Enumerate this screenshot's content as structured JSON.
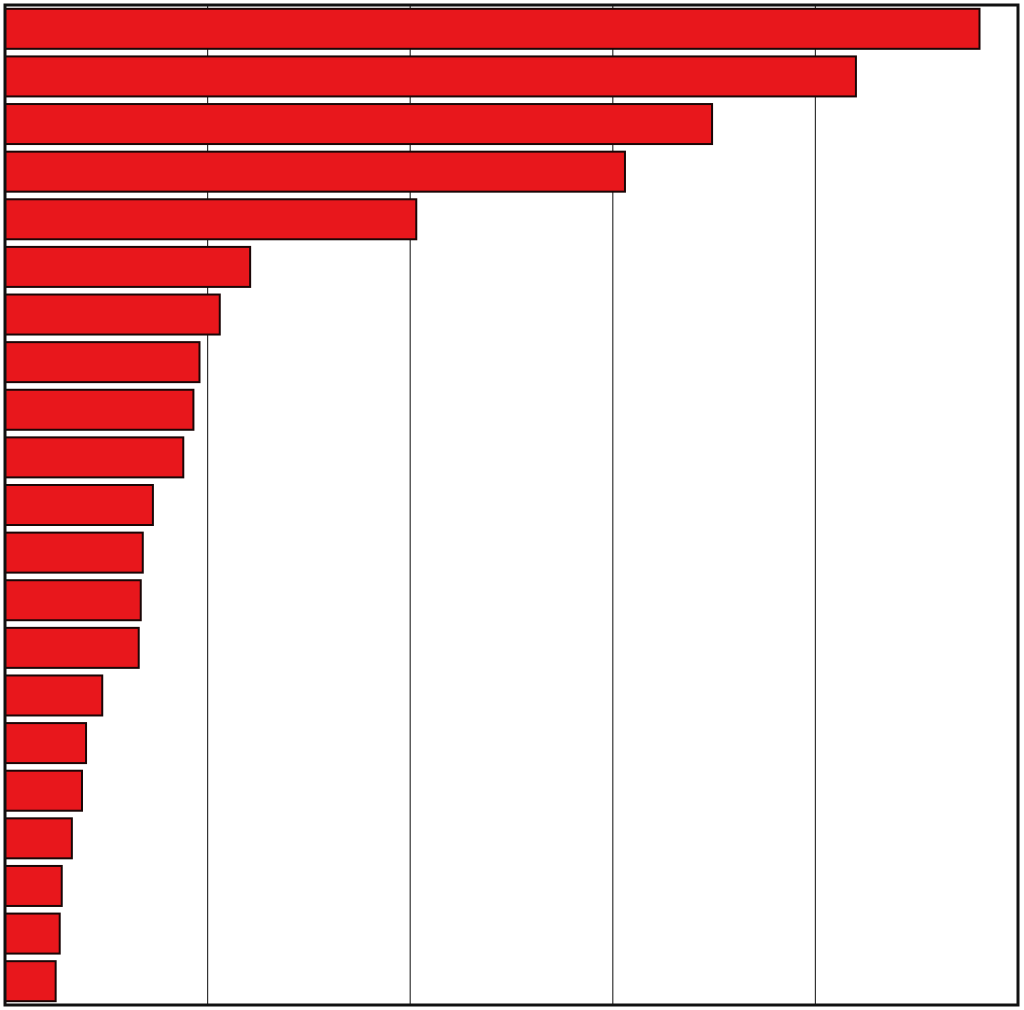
{
  "chart_data": {
    "type": "bar",
    "orientation": "horizontal",
    "xlim": [
      0,
      5
    ],
    "grid": true,
    "legend": "none",
    "bar_color": "#e8171c",
    "bar_edge_color": "#1a0606",
    "frame_color": "#111111",
    "grid_color": "#333333",
    "values": [
      4.81,
      4.2,
      3.49,
      3.06,
      2.03,
      1.21,
      1.06,
      0.96,
      0.93,
      0.88,
      0.73,
      0.68,
      0.67,
      0.66,
      0.48,
      0.4,
      0.38,
      0.33,
      0.28,
      0.27,
      0.25
    ]
  }
}
